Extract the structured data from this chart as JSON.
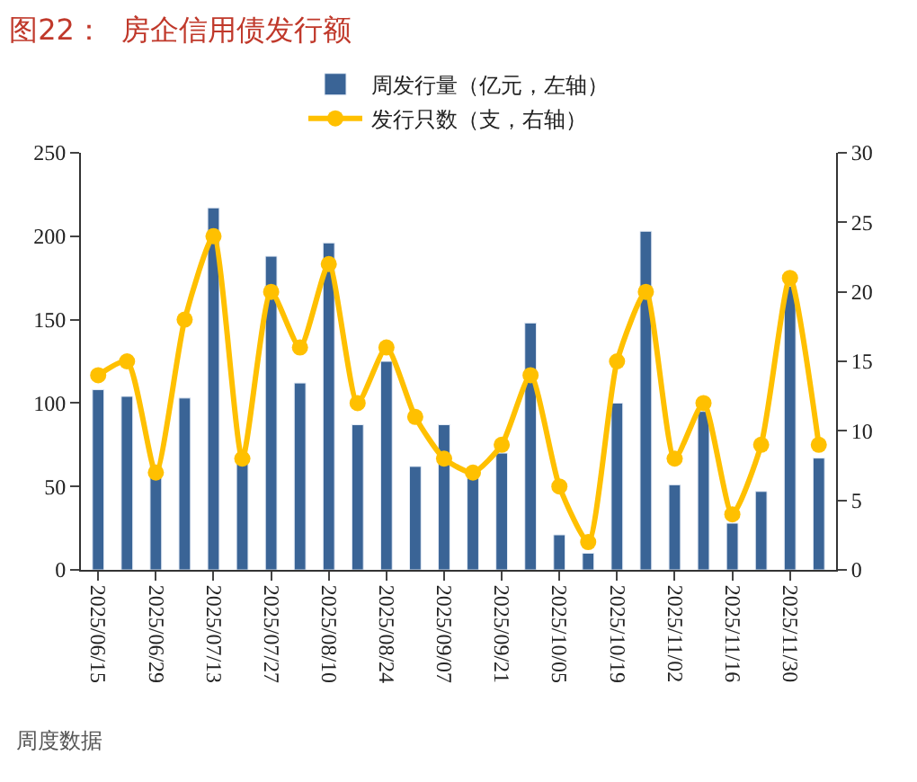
{
  "chart_data": {
    "type": "bar",
    "title": "图22：  房企信用债发行额",
    "categories": [
      "2025/06/15",
      null,
      "2025/06/29",
      null,
      "2025/07/13",
      null,
      "2025/07/27",
      null,
      "2025/08/10",
      null,
      "2025/08/24",
      null,
      "2025/09/07",
      null,
      "2025/09/21",
      null,
      "2025/10/05",
      null,
      "2025/10/19",
      null,
      "2025/11/02",
      null,
      "2025/11/16",
      null,
      "2025/11/30",
      null
    ],
    "series": [
      {
        "name": "周发行量（亿元，左轴）",
        "color": "#3a6496",
        "values": [
          108,
          104,
          63,
          103,
          217,
          66,
          188,
          112,
          196,
          87,
          125,
          62,
          87,
          55,
          70,
          148,
          21,
          10,
          100,
          203,
          51,
          95,
          28,
          47,
          170,
          67
        ]
      },
      {
        "name": "发行只数（支，右轴）",
        "type": "line",
        "axis": "y2",
        "color": "#ffc000",
        "values": [
          14,
          15,
          7,
          18,
          24,
          8,
          20,
          16,
          22,
          12,
          16,
          11,
          8,
          7,
          9,
          14,
          6,
          2,
          15,
          20,
          8,
          12,
          4,
          9,
          21,
          9
        ]
      }
    ],
    "ylim": [
      0,
      250
    ],
    "yticks": [
      0,
      50,
      100,
      150,
      200,
      250
    ],
    "y2lim": [
      0,
      30
    ],
    "y2ticks": [
      0,
      5,
      10,
      15,
      20,
      25,
      30
    ],
    "marker": "circle",
    "line_style": "solid",
    "legend": "top",
    "annotations": [
      "周度数据"
    ]
  }
}
